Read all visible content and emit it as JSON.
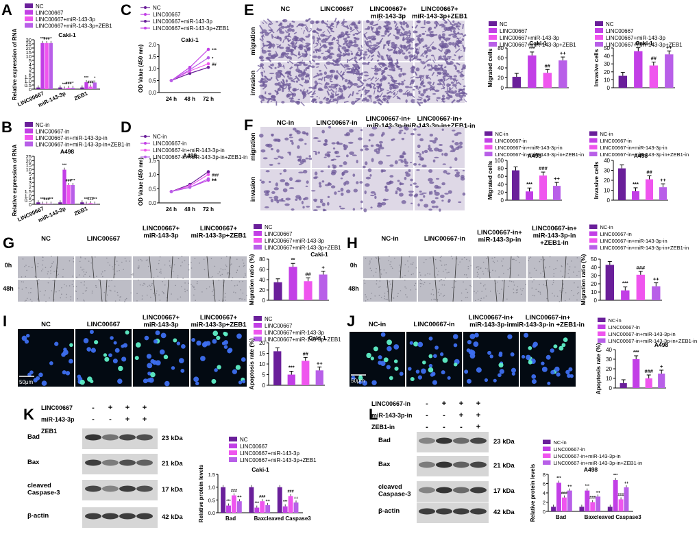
{
  "colors": {
    "c1": "#6a1f9a",
    "c2": "#c23fe6",
    "c3": "#ef55ee",
    "c4": "#b85fe8",
    "micro_bg": "#ded8e6",
    "micro_stain": "#6e5a9a",
    "fluor_bg": "#030a12",
    "wound_bg": "#bdbdc6"
  },
  "panels": {
    "A": {
      "letter": "A",
      "title": "Caki-1",
      "ylabel": "Relative expression of RNA",
      "legend": [
        "NC",
        "LINC00667",
        "LINC00667+miR-143-3p",
        "LINC00667+miR-143-3p+ZEB1"
      ],
      "ticks": [
        "0",
        "0.5",
        "1.0",
        "1.5",
        "2",
        "3",
        "4",
        "5",
        "10",
        "15",
        "20",
        "25",
        "30"
      ],
      "groups": [
        "LINC00667",
        "miR-143-3p",
        "ZEB1"
      ],
      "stars": [
        "***",
        "###",
        "*",
        "##",
        "+",
        "***",
        "##",
        "++"
      ]
    },
    "B": {
      "letter": "B",
      "title": "A498",
      "ylabel": "Relative expression of RNA",
      "legend": [
        "NC-in",
        "LINC00667-in",
        "LINC00667-in+miR-143-3p-in",
        "LINC00667-in+miR-143-3p-in+ZEB1-in"
      ],
      "ticks": [
        "0",
        "0.5",
        "1.0",
        "1.5",
        "2",
        "3",
        "4",
        "5",
        "10",
        "15",
        "20",
        "25"
      ],
      "groups": [
        "LINC00667",
        "miR-143-3p",
        "ZEB1"
      ],
      "stars": [
        "***",
        "###",
        "***",
        "###",
        "***",
        "##",
        "+"
      ]
    },
    "C": {
      "letter": "C",
      "title": "Caki-1",
      "ylabel": "OD Value (450 nm)",
      "legend": [
        "NC",
        "LINC00667",
        "LINC00667+miR-143-3p",
        "LINC00667+miR-143-3p+ZEB1"
      ],
      "ticks": [
        "0.0",
        "0.5",
        "1.0",
        "1.5",
        "2.0"
      ],
      "xticks": [
        "24 h",
        "48 h",
        "72 h"
      ],
      "stars": [
        "***",
        "##",
        "*"
      ]
    },
    "D": {
      "letter": "D",
      "title": "A498",
      "ylabel": "OD Value (450 nm)",
      "legend": [
        "NC-in",
        "LINC00667-in",
        "LINC00667-in+miR-143-3p-in",
        "LINC00667-in+miR-143-3p-in+ZEB1-in"
      ],
      "ticks": [
        "0.0",
        "0.5",
        "1.0",
        "1.5"
      ],
      "xticks": [
        "24 h",
        "48 h",
        "72 h"
      ],
      "stars": [
        "***",
        "###",
        "++"
      ]
    },
    "E": {
      "letter": "E",
      "columns": [
        "NC",
        "LINC00667",
        "LINC00667+\nmiR-143-3p",
        "LINC00667+\nmiR-143-3p+ZEB1"
      ],
      "rows": [
        "migration",
        "invasion"
      ],
      "legend1": [
        "NC",
        "LINC00667",
        "LINC00667+miR-143-3p",
        "LINC00667+miR-143-3p+ZEB1"
      ],
      "legend2": [
        "NC",
        "LINC00667",
        "LINC00667+miR-143-3p",
        "LINC00667+miR-143-3p+ZEB1"
      ],
      "chart1": {
        "title": "Caki-1",
        "ylabel": "Migrated cells",
        "ticks": [
          "0",
          "20",
          "40",
          "60",
          "80"
        ],
        "stars": [
          "***",
          "##",
          "++"
        ]
      },
      "chart2": {
        "title": "Caki-1",
        "ylabel": "Invasive cells",
        "ticks": [
          "0",
          "10",
          "20",
          "30",
          "40",
          "50"
        ],
        "stars": [
          "***",
          "##",
          "++"
        ]
      }
    },
    "F": {
      "letter": "F",
      "columns": [
        "NC-in",
        "LINC00667-in",
        "LINC00667-in+\nmiR-143-3p-in",
        "LINC00667-in+\nmiR-143-3p-in+ZEB1-in"
      ],
      "rows": [
        "migration",
        "invasion"
      ],
      "legend1": [
        "NC-in",
        "LINC00667-in",
        "LINC00667-in+miR-143-3p-in",
        "LINC00667-in+miR-143-3p-in+ZEB1-in"
      ],
      "legend2": [
        "NC-in",
        "LINC00667-in",
        "LINC00667-in+miR-143-3p-in",
        "LINC00667-in+miR-143-3p-in+ZEB1-in"
      ],
      "chart1": {
        "title": "A498",
        "ylabel": "Migrated cells",
        "ticks": [
          "0",
          "20",
          "40",
          "60",
          "80",
          "100"
        ],
        "stars": [
          "***",
          "###",
          "++"
        ]
      },
      "chart2": {
        "title": "A498",
        "ylabel": "Invasive cells",
        "ticks": [
          "0",
          "10",
          "20",
          "30",
          "40"
        ],
        "stars": [
          "***",
          "##",
          "++"
        ]
      }
    },
    "G": {
      "letter": "G",
      "columns": [
        "NC",
        "LINC00667",
        "LINC00667+\nmiR-143-3p",
        "LINC00667+\nmiR-143-3p+ZEB1"
      ],
      "rows": [
        "0h",
        "48h"
      ],
      "legend": [
        "NC",
        "LINC00667",
        "LINC00667+miR-143-3p",
        "LINC00667+miR-143-3p+ZEB1"
      ],
      "chart": {
        "title": "Caki-1",
        "ylabel": "Migration ratio (%)",
        "ticks": [
          "0",
          "20",
          "40",
          "60",
          "80"
        ],
        "stars": [
          "**",
          "##",
          "+"
        ]
      }
    },
    "H": {
      "letter": "H",
      "columns": [
        "NC-in",
        "LINC00667-in",
        "LINC00667-in+\nmiR-143-3p-in",
        "LINC00667-in+\nmiR-143-3p-in\n+ZEB1-in"
      ],
      "rows": [
        "0h",
        "48h"
      ],
      "legend": [
        "NC-in",
        "LINC00667-in",
        "LINC00667-in+miR-143-3p-in",
        "LINC00667-in+miR-143-3p-in+ZEB1-in"
      ],
      "chart": {
        "title": "A498",
        "ylabel": "Migration ratio (%)",
        "ticks": [
          "0",
          "10",
          "20",
          "30",
          "40",
          "50"
        ],
        "stars": [
          "***",
          "###",
          "++"
        ]
      }
    },
    "I": {
      "letter": "I",
      "columns": [
        "NC",
        "LINC00667",
        "LINC00667+\nmiR-143-3p",
        "LINC00667+\nmiR-143-3p+ZEB1"
      ],
      "scale": "50μm",
      "legend": [
        "NC",
        "LINC00667",
        "LINC00667+miR-143-3p",
        "LINC00667+miR-143-3p+ZEB1"
      ],
      "chart": {
        "title": "Caki-1",
        "ylabel": "Apoptosis rate (%)",
        "ticks": [
          "0",
          "5",
          "10",
          "15",
          "20"
        ],
        "stars": [
          "***",
          "##",
          "++"
        ]
      }
    },
    "J": {
      "letter": "J",
      "columns": [
        "NC-in",
        "LINC00667-in",
        "LINC00667-in+\nmiR-143-3p-in",
        "LINC00667-in+\nmiR-143-3p-in +ZEB1-in"
      ],
      "scale": "50μm",
      "legend": [
        "NC-in",
        "LINC00667-in",
        "LINC00667-in+miR-143-3p-in",
        "LINC00667-in+miR-143-3p-in+ZEB1-in"
      ],
      "chart": {
        "title": "A498",
        "ylabel": "Apoptosis rate (%)",
        "ticks": [
          "0",
          "10",
          "20",
          "30",
          "40"
        ],
        "stars": [
          "***",
          "###",
          "+"
        ]
      }
    },
    "K": {
      "letter": "K",
      "conditions": [
        {
          "label": "LINC00667",
          "signs": [
            "-",
            "+",
            "+",
            "+"
          ]
        },
        {
          "label": "miR-143-3p",
          "signs": [
            "-",
            "-",
            "+",
            "+"
          ]
        },
        {
          "label": "ZEB1",
          "signs": [
            "-",
            "-",
            "-",
            "+"
          ]
        }
      ],
      "proteins": [
        "Bad",
        "Bax",
        "cleaved\nCaspase-3",
        "β-actin"
      ],
      "kda": [
        "23 kDa",
        "21 kDa",
        "17 kDa",
        "42 kDa"
      ],
      "legend": [
        "NC",
        "LINC00667",
        "LINC00667+miR-143-3p",
        "LINC00667+miR-143-3p+ZEB1"
      ],
      "chart": {
        "title": "Caki-1",
        "ylabel": "Relative protein levels",
        "ticks": [
          "0.0",
          "0.5",
          "1.0",
          "1.5"
        ],
        "groups": [
          "Bad",
          "Bax",
          "cleaved Caspase3"
        ],
        "stars": [
          "***",
          "###",
          "++"
        ]
      }
    },
    "L": {
      "letter": "L",
      "conditions": [
        {
          "label": "LINC00667-in",
          "signs": [
            "-",
            "+",
            "+",
            "+"
          ]
        },
        {
          "label": "miR-143-3p-in",
          "signs": [
            "-",
            "-",
            "+",
            "+"
          ]
        },
        {
          "label": "ZEB1-in",
          "signs": [
            "-",
            "-",
            "-",
            "+"
          ]
        }
      ],
      "proteins": [
        "Bad",
        "Bax",
        "cleaved\nCaspase-3",
        "β-actin"
      ],
      "kda": [
        "23 kDa",
        "21 kDa",
        "17 kDa",
        "42 kDa"
      ],
      "legend": [
        "NC-in",
        "LINC00667-in",
        "LINC00667-in+miR-143-3p-in",
        "LINC00667-in+miR-143-3p-in+ZEB1-in"
      ],
      "chart": {
        "title": "A498",
        "ylabel": "Relative protein levels",
        "ticks": [
          "0",
          "2",
          "4",
          "6",
          "8"
        ],
        "groups": [
          "Bad",
          "Bax",
          "cleaved Caspase3"
        ],
        "stars": [
          "***",
          "###",
          "++"
        ]
      }
    }
  },
  "chart_data": [
    {
      "id": "A",
      "type": "bar",
      "categories": [
        "LINC00667",
        "miR-143-3p",
        "ZEB1"
      ],
      "series": [
        {
          "values": [
            1.0,
            1.0,
            1.0
          ]
        },
        {
          "values": [
            28,
            0.3,
            4.2
          ]
        },
        {
          "values": [
            28,
            0.8,
            1.5
          ]
        },
        {
          "values": [
            28,
            0.8,
            4.0
          ]
        }
      ],
      "title": "Caki-1",
      "ylabel": "Relative expression of RNA",
      "ylim": [
        0,
        30
      ]
    },
    {
      "id": "B",
      "type": "bar",
      "categories": [
        "LINC00667",
        "miR-143-3p",
        "ZEB1"
      ],
      "series": [
        {
          "values": [
            1.0,
            1.0,
            1.0
          ]
        },
        {
          "values": [
            0.3,
            18,
            0.3
          ]
        },
        {
          "values": [
            0.3,
            10,
            0.6
          ]
        },
        {
          "values": [
            0.3,
            10,
            0.3
          ]
        }
      ],
      "title": "A498",
      "ylabel": "Relative expression of RNA",
      "ylim": [
        0,
        25
      ]
    },
    {
      "id": "C",
      "type": "line",
      "x": [
        "24 h",
        "48 h",
        "72 h"
      ],
      "series": [
        {
          "values": [
            0.5,
            0.8,
            1.05
          ]
        },
        {
          "values": [
            0.5,
            1.05,
            1.8
          ]
        },
        {
          "values": [
            0.5,
            0.9,
            1.2
          ]
        },
        {
          "values": [
            0.5,
            0.95,
            1.45
          ]
        }
      ],
      "title": "Caki-1",
      "ylabel": "OD Value (450 nm)",
      "ylim": [
        0,
        2.0
      ]
    },
    {
      "id": "D",
      "type": "line",
      "x": [
        "24 h",
        "48 h",
        "72 h"
      ],
      "series": [
        {
          "values": [
            0.4,
            0.65,
            1.1
          ]
        },
        {
          "values": [
            0.4,
            0.55,
            0.8
          ]
        },
        {
          "values": [
            0.4,
            0.6,
            1.0
          ]
        },
        {
          "values": [
            0.4,
            0.55,
            0.85
          ]
        }
      ],
      "title": "A498",
      "ylabel": "OD Value (450 nm)",
      "ylim": [
        0,
        1.5
      ]
    },
    {
      "id": "E1",
      "type": "bar",
      "categories": [
        "NC",
        "LINC00667",
        "LINC00667+miR-143-3p",
        "LINC00667+miR-143-3p+ZEB1"
      ],
      "values": [
        22,
        65,
        30,
        55
      ],
      "title": "Caki-1",
      "ylabel": "Migrated cells",
      "ylim": [
        0,
        80
      ]
    },
    {
      "id": "E2",
      "type": "bar",
      "categories": [
        "NC",
        "LINC00667",
        "LINC00667+miR-143-3p",
        "LINC00667+miR-143-3p+ZEB1"
      ],
      "values": [
        15,
        46,
        28,
        42
      ],
      "title": "Caki-1",
      "ylabel": "Invasive cells",
      "ylim": [
        0,
        50
      ]
    },
    {
      "id": "F1",
      "type": "bar",
      "categories": [
        "NC-in",
        "LINC00667-in",
        "LINC00667-in+miR-143-3p-in",
        "LINC00667-in+miR-143-3p-in+ZEB1-in"
      ],
      "values": [
        75,
        22,
        62,
        36
      ],
      "title": "A498",
      "ylabel": "Migrated cells",
      "ylim": [
        0,
        100
      ]
    },
    {
      "id": "F2",
      "type": "bar",
      "categories": [
        "NC-in",
        "LINC00667-in",
        "LINC00667-in+miR-143-3p-in",
        "LINC00667-in+miR-143-3p-in+ZEB1-in"
      ],
      "values": [
        32,
        9,
        21,
        13
      ],
      "title": "A498",
      "ylabel": "Invasive cells",
      "ylim": [
        0,
        40
      ]
    },
    {
      "id": "G",
      "type": "bar",
      "categories": [
        "NC",
        "LINC00667",
        "LINC00667+miR-143-3p",
        "LINC00667+miR-143-3p+ZEB1"
      ],
      "values": [
        35,
        65,
        37,
        50
      ],
      "title": "Caki-1",
      "ylabel": "Migration ratio (%)",
      "ylim": [
        0,
        80
      ]
    },
    {
      "id": "H",
      "type": "bar",
      "categories": [
        "NC-in",
        "LINC00667-in",
        "LINC00667-in+miR-143-3p-in",
        "LINC00667-in+miR-143-3p-in+ZEB1-in"
      ],
      "values": [
        43,
        12,
        31,
        17
      ],
      "title": "A498",
      "ylabel": "Migration ratio (%)",
      "ylim": [
        0,
        50
      ]
    },
    {
      "id": "I",
      "type": "bar",
      "categories": [
        "NC",
        "LINC00667",
        "LINC00667+miR-143-3p",
        "LINC00667+miR-143-3p+ZEB1"
      ],
      "values": [
        16,
        5,
        11.5,
        7
      ],
      "title": "Caki-1",
      "ylabel": "Apoptosis rate (%)",
      "ylim": [
        0,
        20
      ]
    },
    {
      "id": "J",
      "type": "bar",
      "categories": [
        "NC-in",
        "LINC00667-in",
        "LINC00667-in+miR-143-3p-in",
        "LINC00667-in+miR-143-3p-in+ZEB1-in"
      ],
      "values": [
        5,
        30,
        10,
        15
      ],
      "title": "A498",
      "ylabel": "Apoptosis rate (%)",
      "ylim": [
        0,
        40
      ]
    },
    {
      "id": "K",
      "type": "bar",
      "categories": [
        "Bad",
        "Bax",
        "cleaved Caspase3"
      ],
      "series": [
        {
          "values": [
            1.0,
            1.0,
            1.0
          ]
        },
        {
          "values": [
            0.28,
            0.2,
            0.25
          ]
        },
        {
          "values": [
            0.68,
            0.45,
            0.65
          ]
        },
        {
          "values": [
            0.45,
            0.3,
            0.4
          ]
        }
      ],
      "title": "Caki-1",
      "ylabel": "Relative protein levels",
      "ylim": [
        0,
        1.5
      ]
    },
    {
      "id": "L",
      "type": "bar",
      "categories": [
        "Bad",
        "Bax",
        "cleaved Caspase3"
      ],
      "series": [
        {
          "values": [
            1.0,
            1.0,
            1.0
          ]
        },
        {
          "values": [
            6.2,
            4.5,
            6.8
          ]
        },
        {
          "values": [
            3.0,
            2.0,
            2.6
          ]
        },
        {
          "values": [
            4.5,
            3.2,
            5.2
          ]
        }
      ],
      "title": "A498",
      "ylabel": "Relative protein levels",
      "ylim": [
        0,
        8
      ]
    }
  ]
}
